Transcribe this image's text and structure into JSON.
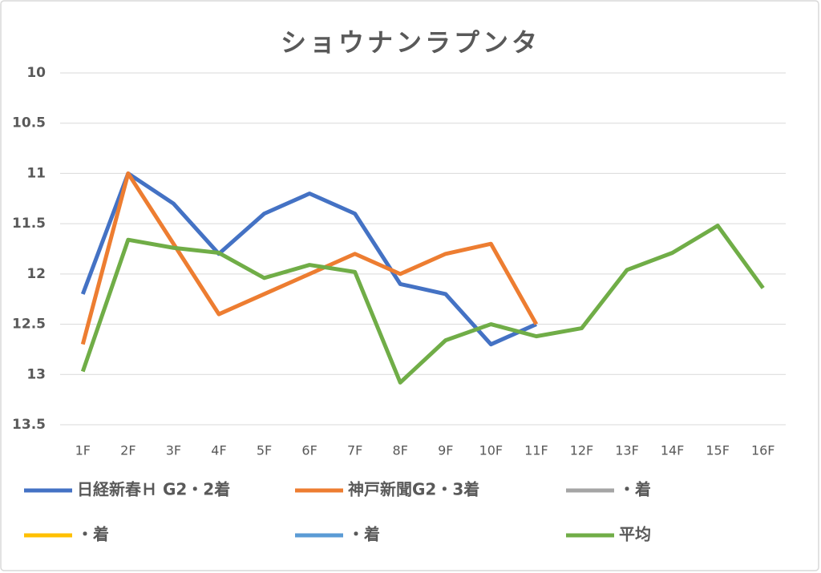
{
  "chart_data": {
    "type": "line",
    "title": "ショウナンラプンタ",
    "categories": [
      "1F",
      "2F",
      "3F",
      "4F",
      "5F",
      "6F",
      "7F",
      "8F",
      "9F",
      "10F",
      "11F",
      "12F",
      "13F",
      "14F",
      "15F",
      "16F"
    ],
    "series": [
      {
        "name": "日経新春Ｈ G2・2着",
        "color": "#4472c4",
        "values": [
          12.2,
          11.0,
          11.3,
          11.8,
          11.4,
          11.2,
          11.4,
          12.1,
          12.2,
          12.7,
          12.5,
          null,
          null,
          null,
          null,
          null
        ]
      },
      {
        "name": "神戸新聞G2・3着",
        "color": "#ed7d31",
        "values": [
          12.7,
          11.0,
          11.7,
          12.4,
          12.2,
          12.0,
          11.8,
          12.0,
          11.8,
          11.7,
          12.5,
          null,
          null,
          null,
          null,
          null
        ]
      },
      {
        "name": "・着",
        "color": "#a5a5a5",
        "values": [
          null,
          null,
          null,
          null,
          null,
          null,
          null,
          null,
          null,
          null,
          null,
          null,
          null,
          null,
          null,
          null
        ]
      },
      {
        "name": "・着",
        "color": "#ffc000",
        "values": [
          null,
          null,
          null,
          null,
          null,
          null,
          null,
          null,
          null,
          null,
          null,
          null,
          null,
          null,
          null,
          null
        ]
      },
      {
        "name": "・着",
        "color": "#5b9bd5",
        "values": [
          null,
          null,
          null,
          null,
          null,
          null,
          null,
          null,
          null,
          null,
          null,
          null,
          null,
          null,
          null,
          null
        ]
      },
      {
        "name": "平均",
        "color": "#70ad47",
        "values": [
          12.97,
          11.66,
          11.74,
          11.79,
          12.04,
          11.91,
          11.98,
          13.08,
          12.66,
          12.5,
          12.62,
          12.54,
          11.96,
          11.79,
          11.52,
          12.14
        ]
      }
    ],
    "ylim": [
      10,
      13.5
    ],
    "yticks": [
      10,
      10.5,
      11,
      11.5,
      12,
      12.5,
      13,
      13.5
    ],
    "y_reversed": true,
    "grid": true,
    "legend": "bottom"
  }
}
